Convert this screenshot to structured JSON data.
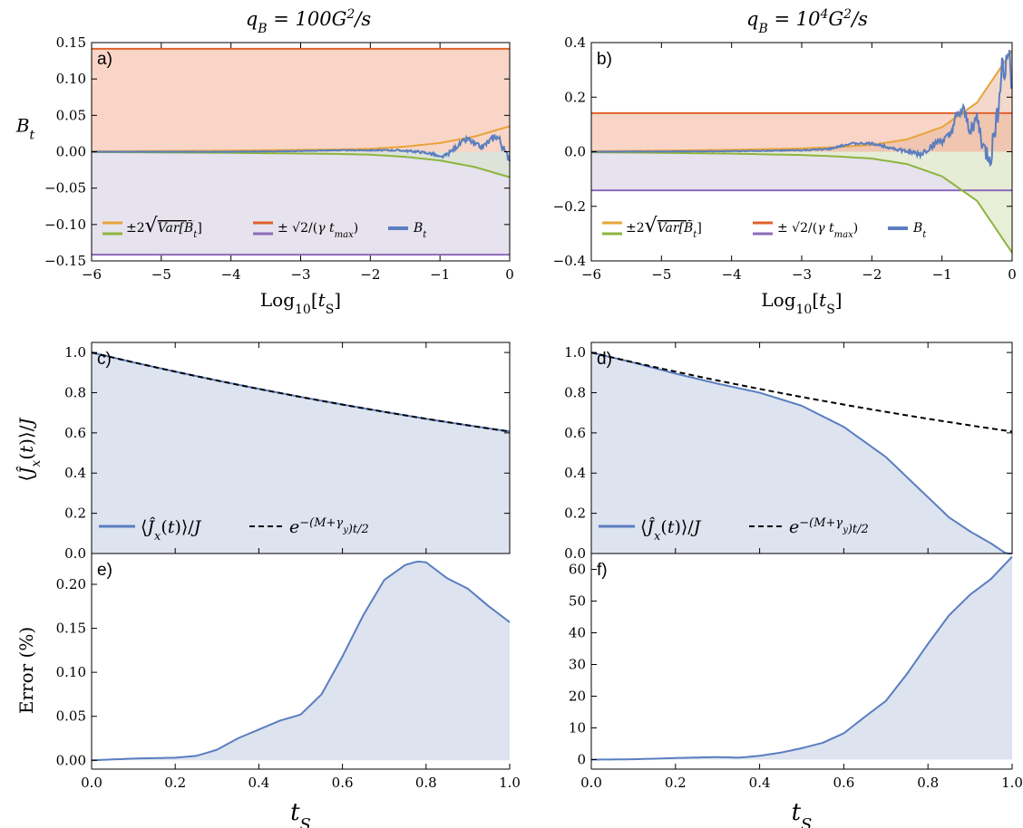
{
  "figure": {
    "col_titles": [
      "q_B = 100G^2/s",
      "q_B = 10^4G^2/s"
    ]
  },
  "colors": {
    "orange": "#E8A33A",
    "red": "#E0612B",
    "green": "#8DB43E",
    "purple": "#8C6BB8",
    "blue": "#5A7EC0",
    "fill_blue": "#DDE3EF",
    "fill_red": "#F8D5C6",
    "fill_purple": "#E6E2EE",
    "fill_green": "#E6EDD3"
  },
  "chart_data": [
    {
      "id": "a",
      "label": "a)",
      "type": "line",
      "xlabel": "Log10[tS]",
      "ylabel": "B_t",
      "xlim": [
        -6,
        0
      ],
      "ylim": [
        -0.15,
        0.15
      ],
      "xticks": [
        -6,
        -5,
        -4,
        -3,
        -2,
        -1,
        0
      ],
      "yticks": [
        -0.15,
        -0.1,
        -0.05,
        0.0,
        0.05,
        0.1,
        0.15
      ],
      "ytick_labels": [
        "-0.15",
        "-0.10",
        "-0.05",
        "0.00",
        "0.05",
        "0.10",
        "0.15"
      ],
      "hline_bound": 0.1414,
      "variance_envelope": {
        "x": [
          -6,
          -5,
          -4,
          -3,
          -2.5,
          -2,
          -1.5,
          -1,
          -0.5,
          0
        ],
        "y": [
          0.0005,
          0.001,
          0.0015,
          0.0025,
          0.003,
          0.004,
          0.007,
          0.012,
          0.021,
          0.035
        ]
      },
      "B_t": {
        "x": [
          -6,
          -4,
          -3,
          -2.5,
          -2,
          -1.6,
          -1.3,
          -1.1,
          -1.0,
          -0.9,
          -0.8,
          -0.7,
          -0.6,
          -0.5,
          -0.4,
          -0.3,
          -0.2,
          -0.15,
          -0.1,
          -0.05,
          0
        ],
        "y": [
          0.0,
          0.0,
          0.001,
          0.002,
          0.002,
          0.002,
          0.0,
          -0.003,
          -0.008,
          -0.004,
          0.004,
          0.012,
          0.018,
          0.01,
          0.006,
          0.014,
          0.022,
          0.018,
          0.006,
          -0.004,
          -0.008
        ]
      },
      "legend": [
        "±2√Var[B̄t]",
        "±√2/(γ tmax)",
        "Bt"
      ]
    },
    {
      "id": "b",
      "label": "b)",
      "type": "line",
      "xlabel": "Log10[tS]",
      "ylabel": "",
      "xlim": [
        -6,
        0
      ],
      "ylim": [
        -0.4,
        0.4
      ],
      "xticks": [
        -6,
        -5,
        -4,
        -3,
        -2,
        -1,
        0
      ],
      "yticks": [
        -0.4,
        -0.2,
        0.0,
        0.2,
        0.4
      ],
      "ytick_labels": [
        "-0.4",
        "-0.2",
        "0.0",
        "0.2",
        "0.4"
      ],
      "hline_bound": 0.1414,
      "variance_envelope": {
        "x": [
          -6,
          -5,
          -4,
          -3,
          -2.5,
          -2,
          -1.5,
          -1,
          -0.5,
          0
        ],
        "y": [
          0.002,
          0.004,
          0.007,
          0.012,
          0.017,
          0.025,
          0.045,
          0.09,
          0.18,
          0.37
        ]
      },
      "B_t": {
        "x": [
          -6,
          -4,
          -3,
          -2.6,
          -2.3,
          -2.0,
          -1.8,
          -1.5,
          -1.3,
          -1.1,
          -0.9,
          -0.8,
          -0.7,
          -0.6,
          -0.5,
          -0.4,
          -0.3,
          -0.2,
          -0.15,
          -0.1,
          -0.05,
          0
        ],
        "y": [
          0.0,
          0.002,
          0.005,
          0.01,
          0.03,
          0.03,
          0.02,
          0.0,
          -0.01,
          0.03,
          0.05,
          0.12,
          0.15,
          0.08,
          0.12,
          0.0,
          -0.02,
          0.16,
          0.32,
          0.28,
          0.38,
          0.26
        ]
      },
      "legend": [
        "±2√Var[B̄t]",
        "±√2/(γ tmax)",
        "Bt"
      ]
    },
    {
      "id": "c",
      "label": "c)",
      "type": "line",
      "xlabel": "",
      "ylabel": "⟨Ĵx(t)⟩/J",
      "xlim": [
        0,
        1
      ],
      "ylim": [
        0,
        1.05
      ],
      "yticks": [
        0.0,
        0.2,
        0.4,
        0.6,
        0.8,
        1.0
      ],
      "ytick_labels": [
        "0.0",
        "0.2",
        "0.4",
        "0.6",
        "0.8",
        "1.0"
      ],
      "decay_rate": 0.5,
      "Jx": {
        "x": [
          0,
          0.1,
          0.2,
          0.3,
          0.4,
          0.5,
          0.6,
          0.7,
          0.8,
          0.9,
          1.0
        ],
        "y": [
          1.0,
          0.951,
          0.905,
          0.861,
          0.819,
          0.779,
          0.741,
          0.705,
          0.67,
          0.638,
          0.607
        ]
      },
      "legend": [
        "⟨Ĵx(t)⟩/J",
        "e^−(M+γy)t/2"
      ]
    },
    {
      "id": "d",
      "label": "d)",
      "type": "line",
      "xlabel": "",
      "ylabel": "",
      "xlim": [
        0,
        1
      ],
      "ylim": [
        0,
        1.05
      ],
      "yticks": [
        0.0,
        0.2,
        0.4,
        0.6,
        0.8,
        1.0
      ],
      "ytick_labels": [
        "0.0",
        "0.2",
        "0.4",
        "0.6",
        "0.8",
        "1.0"
      ],
      "decay_rate": 0.5,
      "Jx": {
        "x": [
          0,
          0.1,
          0.2,
          0.3,
          0.4,
          0.5,
          0.6,
          0.7,
          0.8,
          0.85,
          0.9,
          0.95,
          1.0
        ],
        "y": [
          1.0,
          0.95,
          0.895,
          0.845,
          0.8,
          0.735,
          0.63,
          0.48,
          0.28,
          0.18,
          0.11,
          0.05,
          -0.02
        ]
      },
      "legend": [
        "⟨Ĵx(t)⟩/J",
        "e^−(M+γy)t/2"
      ]
    },
    {
      "id": "e",
      "label": "e)",
      "type": "area",
      "xlabel": "tS",
      "ylabel": "Error (%)",
      "xlim": [
        0,
        1
      ],
      "ylim": [
        -0.01,
        0.235
      ],
      "xticks": [
        0.0,
        0.2,
        0.4,
        0.6,
        0.8,
        1.0
      ],
      "xtick_labels": [
        "0.0",
        "0.2",
        "0.4",
        "0.6",
        "0.8",
        "1.0"
      ],
      "yticks": [
        0.0,
        0.05,
        0.1,
        0.15,
        0.2
      ],
      "ytick_labels": [
        "0.00",
        "0.05",
        "0.10",
        "0.15",
        "0.20"
      ],
      "error": {
        "x": [
          0,
          0.1,
          0.2,
          0.25,
          0.3,
          0.35,
          0.4,
          0.45,
          0.5,
          0.55,
          0.6,
          0.65,
          0.7,
          0.75,
          0.78,
          0.8,
          0.85,
          0.9,
          0.95,
          1.0
        ],
        "y": [
          0.0,
          0.002,
          0.003,
          0.005,
          0.012,
          0.025,
          0.035,
          0.045,
          0.052,
          0.075,
          0.118,
          0.165,
          0.205,
          0.222,
          0.226,
          0.225,
          0.207,
          0.195,
          0.175,
          0.157
        ]
      }
    },
    {
      "id": "f",
      "label": "f)",
      "type": "area",
      "xlabel": "tS",
      "ylabel": "",
      "xlim": [
        0,
        1
      ],
      "ylim": [
        -3,
        65
      ],
      "xticks": [
        0.0,
        0.2,
        0.4,
        0.6,
        0.8,
        1.0
      ],
      "xtick_labels": [
        "0.0",
        "0.2",
        "0.4",
        "0.6",
        "0.8",
        "1.0"
      ],
      "yticks": [
        0,
        10,
        20,
        30,
        40,
        50,
        60
      ],
      "ytick_labels": [
        "0",
        "10",
        "20",
        "30",
        "40",
        "50",
        "60"
      ],
      "error": {
        "x": [
          0,
          0.1,
          0.2,
          0.3,
          0.35,
          0.4,
          0.45,
          0.5,
          0.55,
          0.6,
          0.65,
          0.7,
          0.75,
          0.8,
          0.85,
          0.9,
          0.95,
          1.0
        ],
        "y": [
          0.0,
          0.1,
          0.5,
          0.8,
          0.6,
          1.2,
          2.2,
          3.6,
          5.3,
          8.3,
          13.5,
          18.5,
          27.0,
          36.5,
          45.5,
          52.0,
          57.0,
          64.0
        ]
      }
    }
  ]
}
